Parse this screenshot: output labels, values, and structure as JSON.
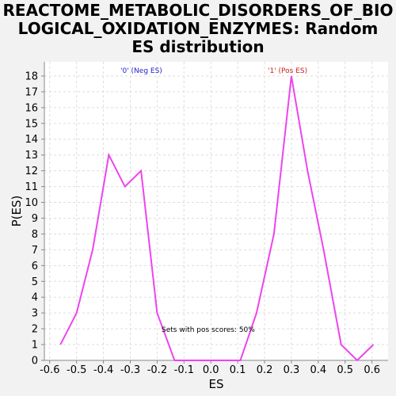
{
  "title_lines": [
    "REACTOME_METABOLIC_DISORDERS_OF_BIO",
    "LOGICAL_OXIDATION_ENZYMES: Random",
    "ES distribution"
  ],
  "colors": {
    "line": "#ee44ee",
    "neg": "#2222cc",
    "pos": "#cc2222",
    "grid": "#dddddd",
    "plot_bg": "#ffffff",
    "page_bg": "#f2f2f2"
  },
  "chart_data": {
    "type": "line",
    "title": "REACTOME_METABOLIC_DISORDERS_OF_BIOLOGICAL_OXIDATION_ENZYMES: Random ES distribution",
    "xlabel": "ES",
    "ylabel": "P(ES)",
    "xlim": [
      -0.62,
      0.66
    ],
    "ylim": [
      0,
      18.9
    ],
    "grid": true,
    "x_ticks": [
      "-0.6",
      "-0.5",
      "-0.4",
      "-0.3",
      "-0.2",
      "-0.1",
      "0.0",
      "0.1",
      "0.2",
      "0.3",
      "0.4",
      "0.5",
      "0.6"
    ],
    "y_ticks": [
      "0",
      "1",
      "2",
      "3",
      "4",
      "5",
      "6",
      "7",
      "8",
      "9",
      "10",
      "11",
      "12",
      "13",
      "14",
      "15",
      "16",
      "17",
      "18"
    ],
    "series": [
      {
        "x": [
          -0.56,
          -0.5,
          -0.44,
          -0.38,
          -0.32,
          -0.26,
          -0.2,
          -0.135,
          -0.075,
          -0.015,
          0.05,
          0.11,
          0.17,
          0.235,
          0.3,
          0.36,
          0.42,
          0.485,
          0.545,
          0.605
        ],
        "y": [
          1,
          3,
          7,
          13,
          11,
          12,
          3,
          0,
          0,
          0,
          0,
          0,
          3,
          8,
          18,
          12,
          7,
          1,
          0,
          1
        ]
      }
    ],
    "annotations": {
      "neg_label": "'0' (Neg ES)",
      "pos_label": "'1' (Pos ES)",
      "center_text": "Sets with pos scores: 50%"
    }
  }
}
